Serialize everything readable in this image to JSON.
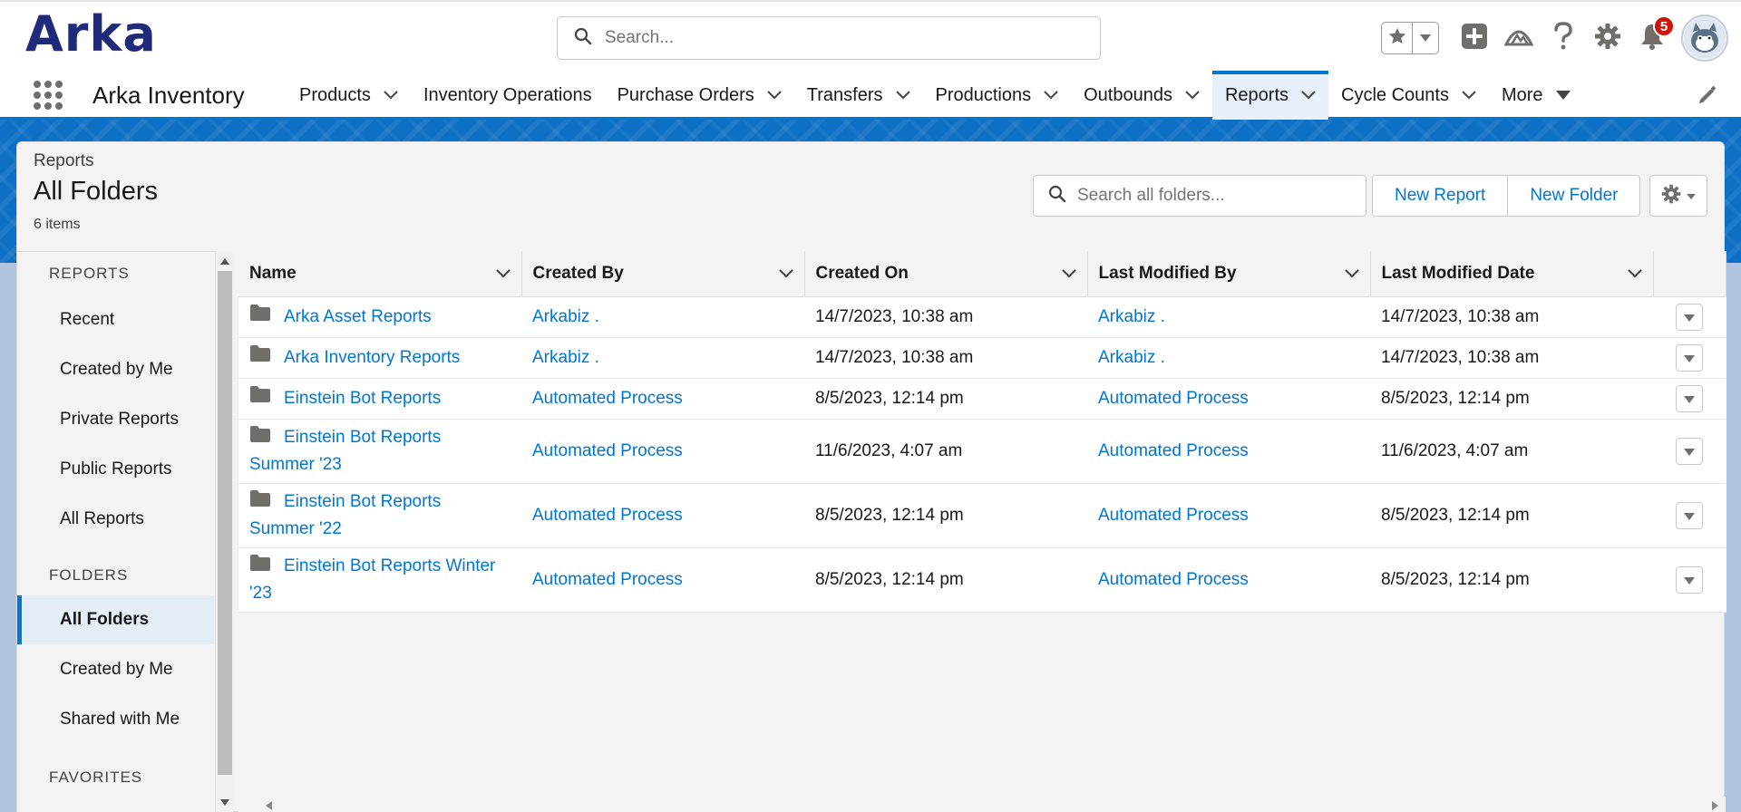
{
  "header": {
    "logo_text": "Arka",
    "search_placeholder": "Search...",
    "notification_count": "5"
  },
  "appnav": {
    "app_name": "Arka Inventory",
    "items": [
      {
        "label": "Products",
        "has_chevron": true
      },
      {
        "label": "Inventory Operations",
        "has_chevron": false
      },
      {
        "label": "Purchase Orders",
        "has_chevron": true
      },
      {
        "label": "Transfers",
        "has_chevron": true
      },
      {
        "label": "Productions",
        "has_chevron": true
      },
      {
        "label": "Outbounds",
        "has_chevron": true
      },
      {
        "label": "Reports",
        "has_chevron": true,
        "active": true
      },
      {
        "label": "Cycle Counts",
        "has_chevron": true
      },
      {
        "label": "More",
        "has_chevron": true
      }
    ]
  },
  "page": {
    "breadcrumb": "Reports",
    "title": "All Folders",
    "item_count": "6 items",
    "search_placeholder": "Search all folders...",
    "new_report_label": "New Report",
    "new_folder_label": "New Folder"
  },
  "sidebar": {
    "sections": [
      {
        "heading": "REPORTS",
        "items": [
          "Recent",
          "Created by Me",
          "Private Reports",
          "Public Reports",
          "All Reports"
        ]
      },
      {
        "heading": "FOLDERS",
        "items": [
          "All Folders",
          "Created by Me",
          "Shared with Me"
        ]
      },
      {
        "heading": "FAVORITES",
        "items": []
      }
    ],
    "active_item": "All Folders"
  },
  "table": {
    "columns": [
      "Name",
      "Created By",
      "Created On",
      "Last Modified By",
      "Last Modified Date"
    ],
    "rows": [
      {
        "name": "Arka Asset Reports",
        "created_by": "Arkabiz .",
        "created_on": "14/7/2023, 10:38 am",
        "modified_by": "Arkabiz .",
        "modified_on": "14/7/2023, 10:38 am"
      },
      {
        "name": "Arka Inventory Reports",
        "created_by": "Arkabiz .",
        "created_on": "14/7/2023, 10:38 am",
        "modified_by": "Arkabiz .",
        "modified_on": "14/7/2023, 10:38 am"
      },
      {
        "name": "Einstein Bot Reports",
        "created_by": "Automated Process",
        "created_on": "8/5/2023, 12:14 pm",
        "modified_by": "Automated Process",
        "modified_on": "8/5/2023, 12:14 pm"
      },
      {
        "name": "Einstein Bot Reports Summer '23",
        "created_by": "Automated Process",
        "created_on": "11/6/2023, 4:07 am",
        "modified_by": "Automated Process",
        "modified_on": "11/6/2023, 4:07 am"
      },
      {
        "name": "Einstein Bot Reports Summer '22",
        "created_by": "Automated Process",
        "created_on": "8/5/2023, 12:14 pm",
        "modified_by": "Automated Process",
        "modified_on": "8/5/2023, 12:14 pm"
      },
      {
        "name": "Einstein Bot Reports Winter '23",
        "created_by": "Automated Process",
        "created_on": "8/5/2023, 12:14 pm",
        "modified_by": "Automated Process",
        "modified_on": "8/5/2023, 12:14 pm"
      }
    ]
  },
  "colors": {
    "accent": "#0176d3",
    "brand": "#1f2a7a",
    "badge": "#d1140a"
  },
  "icons": [
    "search-icon",
    "star-icon",
    "chevron-down-icon",
    "plus-icon",
    "trailhead-icon",
    "help-icon",
    "gear-icon",
    "bell-icon",
    "app-launcher-icon",
    "pencil-icon",
    "folder-icon"
  ]
}
